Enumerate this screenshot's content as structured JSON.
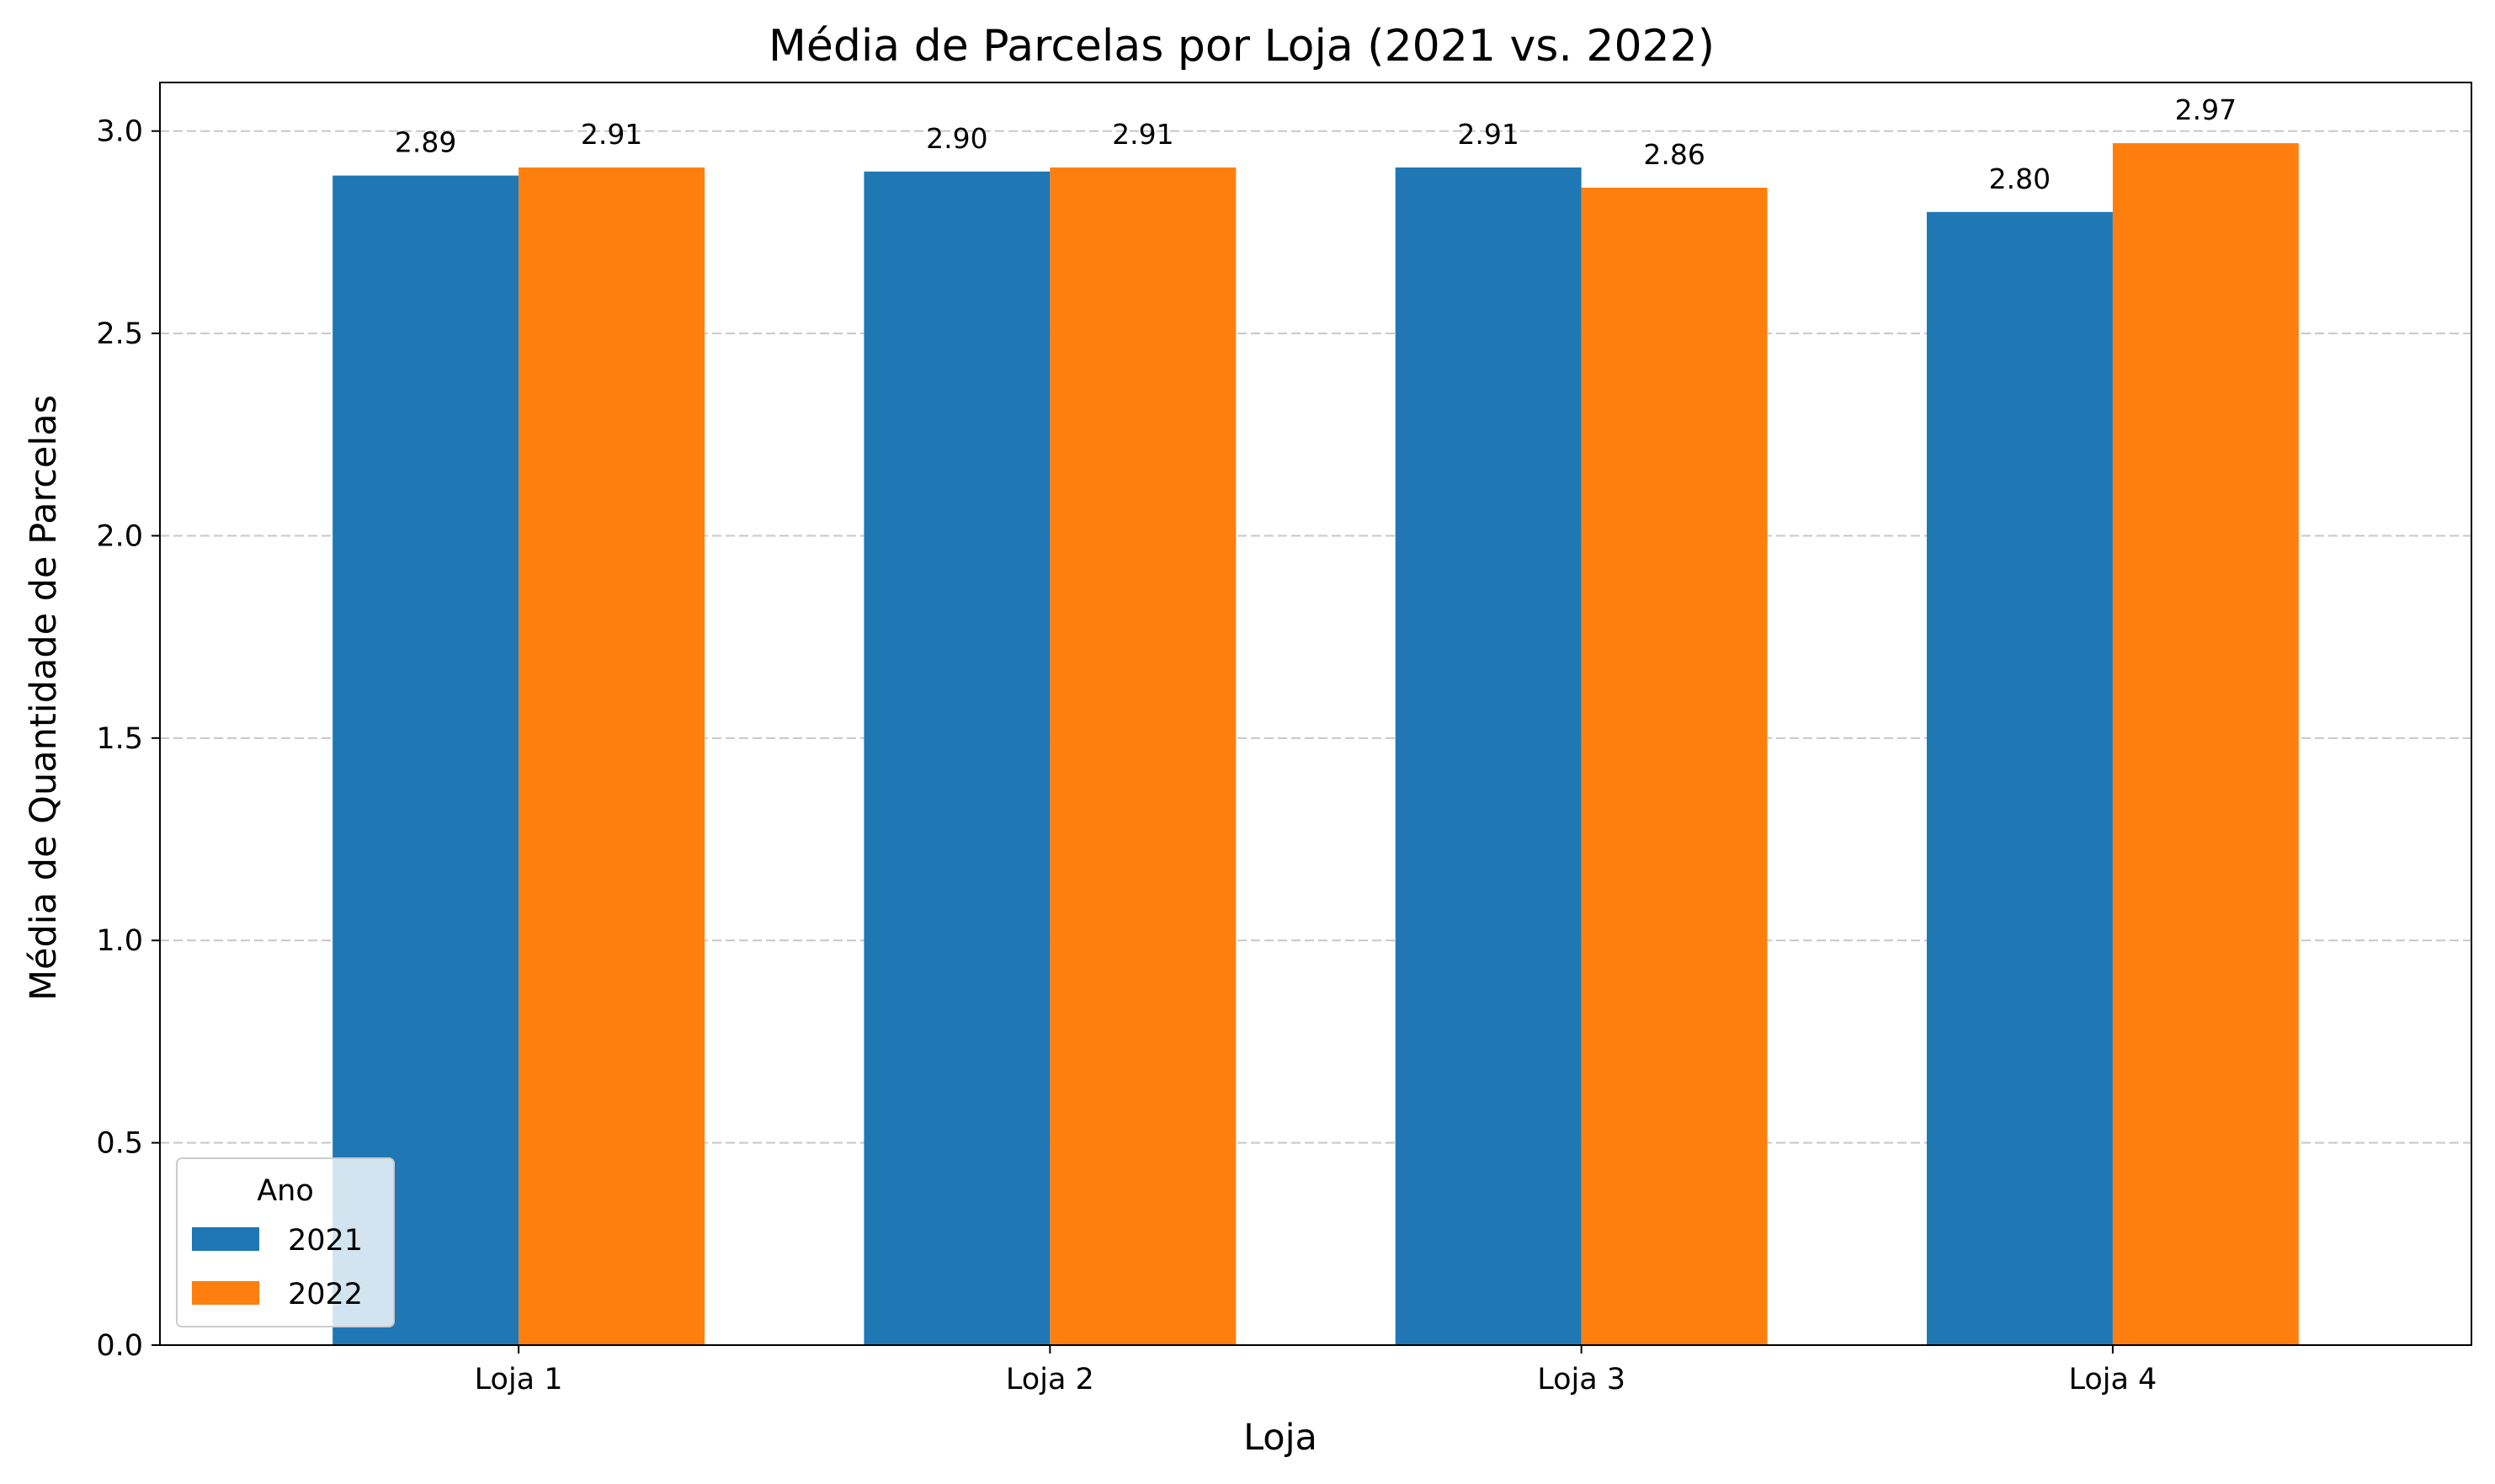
{
  "chart_data": {
    "type": "bar",
    "title": "Média de Parcelas por Loja (2021 vs. 2022)",
    "xlabel": "Loja",
    "ylabel": "Média de Quantidade de Parcelas",
    "categories": [
      "Loja 1",
      "Loja 2",
      "Loja 3",
      "Loja 4"
    ],
    "series": [
      {
        "name": "2021",
        "color": "#1f77b4",
        "values": [
          2.89,
          2.9,
          2.91,
          2.8
        ],
        "labels": [
          "2.89",
          "2.90",
          "2.91",
          "2.80"
        ]
      },
      {
        "name": "2022",
        "color": "#ff7f0e",
        "values": [
          2.91,
          2.91,
          2.86,
          2.97
        ],
        "labels": [
          "2.91",
          "2.91",
          "2.86",
          "2.97"
        ]
      }
    ],
    "ylim": [
      0,
      3.12
    ],
    "yticks": [
      "0.0",
      "0.5",
      "1.0",
      "1.5",
      "2.0",
      "2.5",
      "3.0"
    ],
    "grid": "y-dashed",
    "legend": {
      "title": "Ano",
      "placement": "lower-left",
      "entries": [
        "2021",
        "2022"
      ]
    }
  }
}
